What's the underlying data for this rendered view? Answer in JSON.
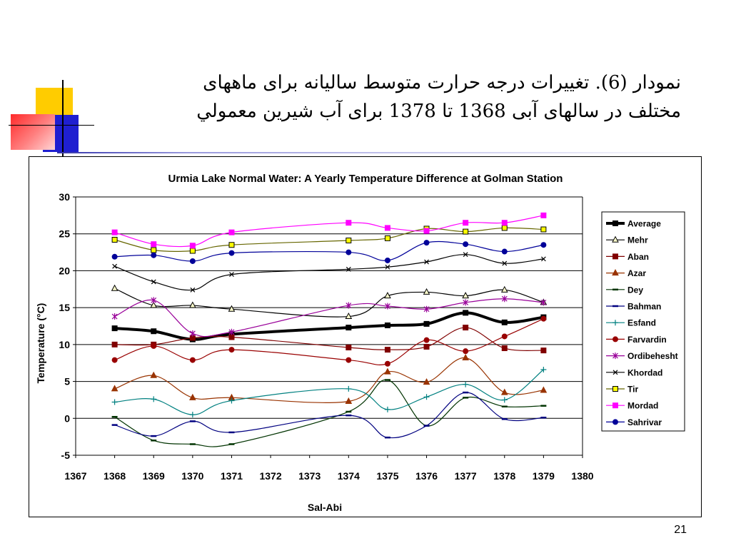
{
  "slide": {
    "title_line1": "نمودار (6). تغییرات درجه حرارت متوسط سالیانه برای ماههای",
    "title_line2": "مختلف در سالهای آبی 1368 تا 1378 برای آب شیرین معمولي",
    "number": "21"
  },
  "colors": {
    "deco_yellow": "#ffcc00",
    "deco_blue": "#1f1fd0",
    "deco_red": "#ff3333",
    "rule": "#000000"
  },
  "chart_data": {
    "type": "line",
    "title": "Urmia Lake Normal Water: A Yearly Temperature Difference at Golman Station",
    "xlabel": "Sal-Abi",
    "ylabel": "Temperature  (°C)",
    "xlim": [
      1367,
      1380
    ],
    "ylim": [
      -5,
      30
    ],
    "x_ticks": [
      "1367",
      "1368",
      "1369",
      "1370",
      "1371",
      "1372",
      "1373",
      "1374",
      "1375",
      "1376",
      "1377",
      "1378",
      "1379",
      "1380"
    ],
    "y_ticks": [
      "-5",
      "0",
      "5",
      "10",
      "15",
      "20",
      "25",
      "30"
    ],
    "grid": "horizontal",
    "legend_position": "right",
    "x": [
      1368,
      1369,
      1370,
      1371,
      1374,
      1375,
      1376,
      1377,
      1378,
      1379
    ],
    "series": [
      {
        "name": "Average",
        "color": "#000000",
        "marker": "square",
        "values": [
          12.2,
          11.8,
          10.7,
          11.4,
          12.3,
          12.6,
          12.8,
          14.3,
          13.0,
          13.7
        ]
      },
      {
        "name": "Mehr",
        "color": "#000000",
        "marker": "triangle-open",
        "values": [
          17.6,
          15.3,
          15.3,
          14.8,
          13.8,
          16.6,
          17.1,
          16.6,
          17.4,
          15.7
        ]
      },
      {
        "name": "Aban",
        "color": "#800000",
        "marker": "square",
        "values": [
          10.0,
          10.0,
          10.9,
          11.0,
          9.6,
          9.3,
          9.7,
          12.3,
          9.5,
          9.2
        ]
      },
      {
        "name": "Azar",
        "color": "#993300",
        "marker": "triangle",
        "values": [
          4.0,
          5.8,
          2.8,
          2.8,
          2.3,
          6.3,
          4.9,
          8.2,
          3.5,
          3.8
        ]
      },
      {
        "name": "Dey",
        "color": "#003300",
        "marker": "dash",
        "values": [
          0.2,
          -3.0,
          -3.5,
          -3.5,
          0.9,
          5.2,
          -1.0,
          2.8,
          1.6,
          1.7
        ]
      },
      {
        "name": "Bahman",
        "color": "#000080",
        "marker": "dash",
        "values": [
          -0.9,
          -2.4,
          -0.4,
          -1.9,
          0.4,
          -2.6,
          -1.0,
          3.5,
          -0.1,
          0.1
        ]
      },
      {
        "name": "Esfand",
        "color": "#008080",
        "marker": "plus",
        "values": [
          2.2,
          2.6,
          0.5,
          2.4,
          4.0,
          1.2,
          2.9,
          4.6,
          2.5,
          6.6
        ]
      },
      {
        "name": "Farvardin",
        "color": "#990000",
        "marker": "circle",
        "values": [
          7.9,
          9.8,
          7.9,
          9.3,
          7.9,
          7.4,
          10.6,
          9.1,
          11.1,
          13.5
        ]
      },
      {
        "name": "Ordibehesht",
        "color": "#990099",
        "marker": "star",
        "values": [
          13.8,
          16.0,
          11.5,
          11.7,
          15.3,
          15.2,
          14.8,
          15.7,
          16.2,
          15.7
        ]
      },
      {
        "name": "Khordad",
        "color": "#000000",
        "marker": "x",
        "values": [
          20.6,
          18.5,
          17.4,
          19.5,
          20.2,
          20.5,
          21.2,
          22.2,
          21.0,
          21.6
        ]
      },
      {
        "name": "Tir",
        "color": "#666600",
        "marker": "square-open-yellow",
        "values": [
          24.2,
          22.8,
          22.7,
          23.5,
          24.1,
          24.4,
          25.7,
          25.3,
          25.8,
          25.6
        ]
      },
      {
        "name": "Mordad",
        "color": "#ff00ff",
        "marker": "square",
        "values": [
          25.2,
          23.6,
          23.4,
          25.2,
          26.5,
          25.8,
          25.4,
          26.5,
          26.5,
          27.5
        ]
      },
      {
        "name": "Sahrivar",
        "color": "#000099",
        "marker": "circle",
        "values": [
          21.9,
          22.1,
          21.3,
          22.4,
          22.5,
          21.4,
          23.8,
          23.6,
          22.6,
          23.5
        ]
      }
    ]
  }
}
